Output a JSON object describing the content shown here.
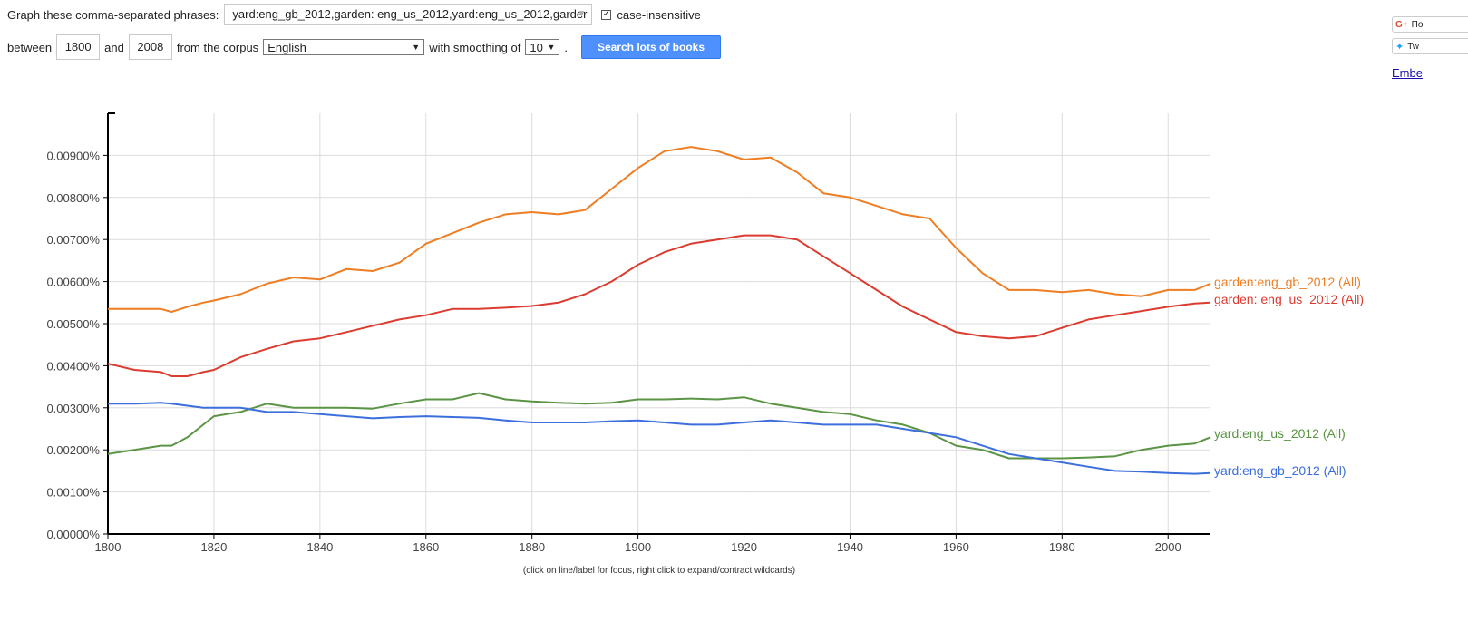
{
  "controls": {
    "phrases_label": "Graph these comma-separated phrases:",
    "phrases_value": "yard:eng_gb_2012,garden: eng_us_2012,yard:eng_us_2012,garder",
    "case_insensitive_label": "case-insensitive",
    "case_checked": "✓",
    "between_label": "between",
    "start_year": "1800",
    "and_label": "and",
    "end_year": "2008",
    "corpus_label": "from the corpus",
    "corpus_value": "English",
    "smoothing_label": "with smoothing of",
    "smoothing_value": "10",
    "period": ".",
    "search_button": "Search lots of books"
  },
  "social": {
    "gplus_text": "По",
    "gplus_icon": "G+",
    "tweet_text": "Tw",
    "tweet_icon": "twitter-bird",
    "embed_link": "Embe"
  },
  "chart_note": "(click on line/label for focus, right click to expand/contract wildcards)",
  "chart_data": {
    "type": "line",
    "title": "",
    "xlabel": "",
    "ylabel": "",
    "xlim": [
      1800,
      2008
    ],
    "ylim": [
      0,
      0.01
    ],
    "grid": true,
    "x_ticks": [
      1800,
      1820,
      1840,
      1860,
      1880,
      1900,
      1920,
      1940,
      1960,
      1980,
      2000
    ],
    "x_tick_labels": [
      "1800",
      "1820",
      "1840",
      "1860",
      "1880",
      "1900",
      "1920",
      "1940",
      "1960",
      "1980",
      "2000"
    ],
    "y_ticks": [
      0,
      0.001,
      0.002,
      0.003,
      0.004,
      0.005,
      0.006,
      0.007,
      0.008,
      0.009
    ],
    "y_tick_labels": [
      "0.00000%",
      "0.00100%",
      "0.00200%",
      "0.00300%",
      "0.00400%",
      "0.00500%",
      "0.00600%",
      "0.00700%",
      "0.00800%",
      "0.00900%"
    ],
    "x": [
      1800,
      1805,
      1810,
      1812,
      1815,
      1818,
      1820,
      1825,
      1830,
      1835,
      1840,
      1845,
      1850,
      1855,
      1860,
      1865,
      1870,
      1875,
      1880,
      1885,
      1890,
      1895,
      1900,
      1905,
      1910,
      1915,
      1920,
      1925,
      1930,
      1935,
      1940,
      1945,
      1950,
      1955,
      1960,
      1965,
      1970,
      1975,
      1980,
      1985,
      1990,
      1995,
      2000,
      2005,
      2008
    ],
    "series": [
      {
        "name": "garden:eng_gb_2012 (All)",
        "color": "#ef7d22",
        "values": [
          0.00535,
          0.00535,
          0.00535,
          0.00528,
          0.0054,
          0.0055,
          0.00555,
          0.0057,
          0.00595,
          0.0061,
          0.00605,
          0.0063,
          0.00625,
          0.00645,
          0.0069,
          0.00715,
          0.0074,
          0.0076,
          0.00765,
          0.0076,
          0.0077,
          0.0082,
          0.0087,
          0.0091,
          0.0092,
          0.0091,
          0.0089,
          0.00895,
          0.0086,
          0.0081,
          0.008,
          0.0078,
          0.0076,
          0.0075,
          0.0068,
          0.0062,
          0.0058,
          0.0058,
          0.00575,
          0.0058,
          0.0057,
          0.00565,
          0.0058,
          0.0058,
          0.00595
        ]
      },
      {
        "name": "garden: eng_us_2012 (All)",
        "color": "#dc3b2f",
        "values": [
          0.00405,
          0.0039,
          0.00385,
          0.00375,
          0.00375,
          0.00385,
          0.0039,
          0.0042,
          0.0044,
          0.00458,
          0.00465,
          0.0048,
          0.00495,
          0.0051,
          0.0052,
          0.00535,
          0.00535,
          0.00538,
          0.00542,
          0.0055,
          0.0057,
          0.006,
          0.0064,
          0.0067,
          0.0069,
          0.007,
          0.0071,
          0.0071,
          0.007,
          0.0066,
          0.0062,
          0.0058,
          0.0054,
          0.0051,
          0.0048,
          0.0047,
          0.00465,
          0.0047,
          0.0049,
          0.0051,
          0.0052,
          0.0053,
          0.0054,
          0.00548,
          0.0055
        ]
      },
      {
        "name": "yard:eng_us_2012 (All)",
        "color": "#5a9444",
        "values": [
          0.0019,
          0.002,
          0.0021,
          0.0021,
          0.0023,
          0.0026,
          0.0028,
          0.0029,
          0.0031,
          0.003,
          0.003,
          0.003,
          0.00298,
          0.0031,
          0.0032,
          0.0032,
          0.00335,
          0.0032,
          0.00315,
          0.00312,
          0.0031,
          0.00312,
          0.0032,
          0.0032,
          0.00322,
          0.0032,
          0.00325,
          0.0031,
          0.003,
          0.0029,
          0.00285,
          0.0027,
          0.0026,
          0.0024,
          0.0021,
          0.002,
          0.0018,
          0.0018,
          0.0018,
          0.00182,
          0.00185,
          0.002,
          0.0021,
          0.00215,
          0.0023
        ]
      },
      {
        "name": "yard:eng_gb_2012 (All)",
        "color": "#3d6fdc",
        "values": [
          0.0031,
          0.0031,
          0.00312,
          0.0031,
          0.00305,
          0.003,
          0.003,
          0.003,
          0.0029,
          0.0029,
          0.00285,
          0.0028,
          0.00275,
          0.00278,
          0.0028,
          0.00278,
          0.00276,
          0.0027,
          0.00265,
          0.00265,
          0.00265,
          0.00268,
          0.0027,
          0.00265,
          0.0026,
          0.0026,
          0.00265,
          0.0027,
          0.00265,
          0.0026,
          0.0026,
          0.0026,
          0.0025,
          0.0024,
          0.0023,
          0.0021,
          0.0019,
          0.0018,
          0.0017,
          0.0016,
          0.0015,
          0.00148,
          0.00145,
          0.00143,
          0.00145
        ]
      }
    ]
  }
}
